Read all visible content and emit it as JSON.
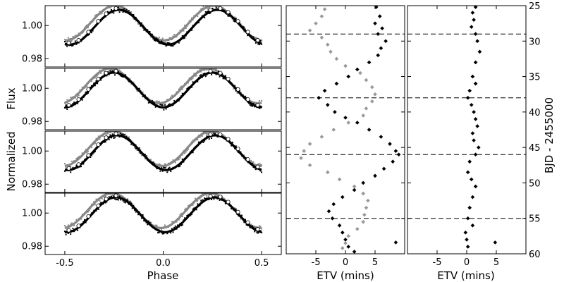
{
  "chart_data": {
    "type": "scatter",
    "phase_panels": {
      "xlabel": "Phase",
      "ylabel_top": "Flux",
      "ylabel_bottom": "Normalized",
      "xlim": [
        -0.6,
        0.6
      ],
      "ylim": [
        0.975,
        1.012
      ],
      "xticks": [
        -0.5,
        0.0,
        0.5
      ],
      "xtick_labels": [
        "-0.5",
        "0.0",
        "0.5"
      ],
      "yticks": [
        0.98,
        1.0
      ],
      "ytick_labels": [
        "0.98",
        "1.00"
      ],
      "panel_count": 4,
      "model": {
        "amplitude": 0.0105,
        "period_phase": 0.5,
        "min_phase": 0.0
      },
      "series": [
        {
          "color": "#888888",
          "offset_phase": -0.01,
          "offset_flux": 0.0015
        },
        {
          "color": "#000000",
          "offset_phase": 0.01,
          "offset_flux": -0.001
        }
      ],
      "binned_points_phase": [
        -0.48,
        -0.43,
        -0.38,
        -0.33,
        -0.29,
        0.29,
        0.33,
        0.38,
        0.43,
        0.48,
        0.24,
        -0.24
      ],
      "panel_phase_shifts": [
        0.015,
        -0.01,
        0.005,
        0.0
      ]
    },
    "etv_panels": [
      {
        "xlabel": "ETV (mins)",
        "xlim": [
          -10,
          10
        ],
        "xticks": [
          -5,
          0,
          5
        ],
        "xtick_labels": [
          "-5",
          "0",
          "5"
        ],
        "black_series": [
          [
            5.2,
            25.2
          ],
          [
            5.8,
            26.5
          ],
          [
            5.0,
            27.5
          ],
          [
            6.2,
            28.2
          ],
          [
            5.5,
            29.0
          ],
          [
            6.8,
            30.0
          ],
          [
            6.0,
            31.0
          ],
          [
            5.5,
            32.0
          ],
          [
            4.0,
            33.0
          ],
          [
            2.0,
            34.0
          ],
          [
            0.5,
            35.0
          ],
          [
            -1.5,
            36.0
          ],
          [
            -3.5,
            37.0
          ],
          [
            -4.5,
            38.0
          ],
          [
            -3.0,
            39.0
          ],
          [
            -1.8,
            40.0
          ],
          [
            0.0,
            40.8
          ],
          [
            2.0,
            41.5
          ],
          [
            4.0,
            42.5
          ],
          [
            6.0,
            43.5
          ],
          [
            7.5,
            44.5
          ],
          [
            8.5,
            45.5
          ],
          [
            9.0,
            46.0
          ],
          [
            8.0,
            47.0
          ],
          [
            6.5,
            48.0
          ],
          [
            5.0,
            49.0
          ],
          [
            3.0,
            50.0
          ],
          [
            1.5,
            51.0
          ],
          [
            -0.5,
            52.0
          ],
          [
            -2.0,
            53.0
          ],
          [
            -2.8,
            54.0
          ],
          [
            -2.2,
            55.0
          ],
          [
            -1.0,
            56.0
          ],
          [
            -0.5,
            57.0
          ],
          [
            0.0,
            58.0
          ],
          [
            0.5,
            59.0
          ],
          [
            1.5,
            59.7
          ],
          [
            8.5,
            58.4
          ]
        ],
        "gray_series": [
          [
            -3.5,
            25.5
          ],
          [
            -4.0,
            26.5
          ],
          [
            -5.0,
            27.5
          ],
          [
            -6.0,
            28.5
          ],
          [
            -4.0,
            29.5
          ],
          [
            -3.0,
            30.5
          ],
          [
            -2.5,
            31.5
          ],
          [
            -1.5,
            32.5
          ],
          [
            0.0,
            33.5
          ],
          [
            2.5,
            34.5
          ],
          [
            3.5,
            35.5
          ],
          [
            4.5,
            36.5
          ],
          [
            5.0,
            37.5
          ],
          [
            4.5,
            38.5
          ],
          [
            3.5,
            39.5
          ],
          [
            3.0,
            40.5
          ],
          [
            0.5,
            41.5
          ],
          [
            -2.0,
            42.5
          ],
          [
            -4.0,
            43.5
          ],
          [
            -6.0,
            44.5
          ],
          [
            -7.0,
            45.5
          ],
          [
            -7.5,
            46.5
          ],
          [
            -6.0,
            47.5
          ],
          [
            -3.0,
            48.5
          ],
          [
            -1.0,
            49.5
          ],
          [
            1.5,
            50.5
          ],
          [
            3.0,
            51.5
          ],
          [
            3.8,
            52.5
          ],
          [
            3.5,
            53.5
          ],
          [
            3.2,
            54.5
          ],
          [
            3.0,
            55.5
          ],
          [
            2.0,
            56.5
          ],
          [
            0.5,
            57.5
          ],
          [
            0.0,
            58.5
          ],
          [
            -0.5,
            59.2
          ]
        ]
      },
      {
        "xlabel": "ETV (mins)",
        "xlim": [
          -10,
          10
        ],
        "xticks": [
          -5,
          0,
          5
        ],
        "xtick_labels": [
          "-5",
          "0",
          "5"
        ],
        "black_series": [
          [
            1.5,
            25.2
          ],
          [
            1.0,
            26.0
          ],
          [
            1.2,
            27.0
          ],
          [
            0.8,
            28.0
          ],
          [
            1.5,
            29.0
          ],
          [
            1.8,
            30.0
          ],
          [
            2.2,
            31.5
          ],
          [
            1.5,
            33.0
          ],
          [
            1.0,
            35.0
          ],
          [
            1.5,
            36.0
          ],
          [
            0.5,
            37.0
          ],
          [
            0.2,
            38.0
          ],
          [
            0.8,
            39.0
          ],
          [
            1.2,
            40.0
          ],
          [
            1.5,
            41.0
          ],
          [
            1.8,
            42.0
          ],
          [
            1.0,
            43.0
          ],
          [
            1.2,
            44.0
          ],
          [
            2.0,
            45.0
          ],
          [
            1.5,
            46.0
          ],
          [
            0.5,
            47.0
          ],
          [
            0.2,
            48.5
          ],
          [
            0.8,
            49.5
          ],
          [
            1.5,
            50.5
          ],
          [
            1.0,
            52.0
          ],
          [
            0.5,
            53.5
          ],
          [
            0.2,
            55.0
          ],
          [
            1.0,
            56.0
          ],
          [
            -0.2,
            57.0
          ],
          [
            0.0,
            58.0
          ],
          [
            0.2,
            59.0
          ],
          [
            4.8,
            58.4
          ]
        ]
      }
    ],
    "bjd_axis": {
      "label": "BJD - 2455000",
      "ylim": [
        25,
        60
      ],
      "yticks": [
        25,
        30,
        35,
        40,
        45,
        50,
        55,
        60
      ],
      "ytick_labels": [
        "25",
        "30",
        "35",
        "40",
        "45",
        "50",
        "55",
        "60"
      ]
    },
    "dashed_lines_bjd": [
      29.0,
      38.0,
      46.0,
      55.0
    ]
  }
}
